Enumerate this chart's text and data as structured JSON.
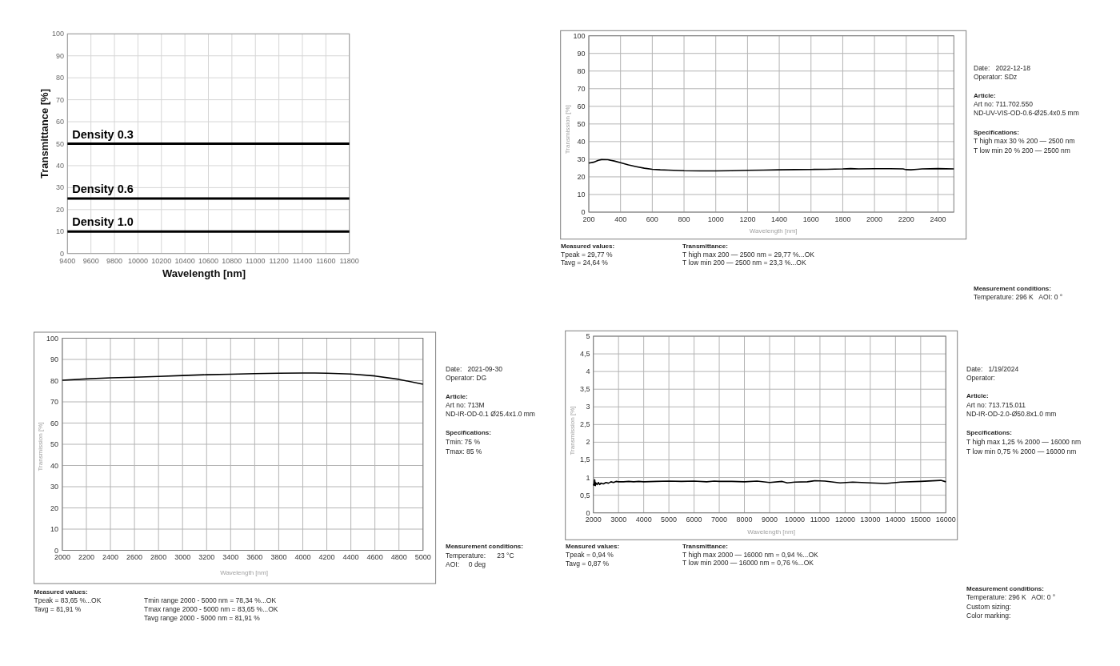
{
  "chart_data": [
    {
      "type": "line",
      "xlabel": "Wavelength [nm]",
      "ylabel": "Transmittance [%]",
      "xlim": [
        9400,
        11800
      ],
      "xticks": [
        9400,
        9600,
        9800,
        10000,
        10200,
        10400,
        10600,
        10800,
        11000,
        11200,
        11400,
        11600,
        11800
      ],
      "ylim": [
        0,
        100
      ],
      "yticks": [
        0,
        10,
        20,
        30,
        40,
        50,
        60,
        70,
        80,
        90,
        100
      ],
      "grid": true,
      "x": [
        9400,
        11800
      ],
      "series": [
        {
          "name": "Density 0.3",
          "color": "#000000",
          "values": [
            50,
            50
          ]
        },
        {
          "name": "Density 0.6",
          "color": "#000000",
          "values": [
            25,
            25
          ]
        },
        {
          "name": "Density 1.0",
          "color": "#000000",
          "values": [
            10,
            10
          ]
        }
      ]
    },
    {
      "type": "line",
      "xlabel": "Wavelength [nm]",
      "ylabel": "Transmission [%]",
      "xlim": [
        200,
        2500
      ],
      "xticks": [
        200,
        400,
        600,
        800,
        1000,
        1200,
        1400,
        1600,
        1800,
        2000,
        2200,
        2400
      ],
      "ylim": [
        0,
        100
      ],
      "yticks": [
        0,
        10,
        20,
        30,
        40,
        50,
        60,
        70,
        80,
        90,
        100
      ],
      "grid": true,
      "x": [
        200,
        230,
        260,
        280,
        320,
        360,
        400,
        450,
        500,
        550,
        600,
        650,
        700,
        800,
        900,
        1000,
        1100,
        1200,
        1300,
        1400,
        1500,
        1600,
        1700,
        1800,
        1850,
        1900,
        2000,
        2100,
        2180,
        2200,
        2230,
        2270,
        2300,
        2400,
        2500
      ],
      "series": [
        {
          "color": "#000000",
          "values": [
            27.8,
            28.3,
            29.4,
            29.8,
            29.7,
            29.0,
            28.0,
            26.8,
            25.8,
            24.9,
            24.3,
            24.0,
            23.8,
            23.5,
            23.4,
            23.4,
            23.5,
            23.7,
            23.8,
            24.0,
            24.1,
            24.2,
            24.3,
            24.5,
            24.7,
            24.5,
            24.6,
            24.6,
            24.5,
            24.1,
            24.0,
            24.3,
            24.5,
            24.7,
            24.5
          ]
        }
      ],
      "annotations": [
        "Measured values:",
        "Tpeak = 29,77 %",
        "Tavg = 24,64 %",
        "Transmittance:",
        "T high max 200 — 2500 nm = 29,77 %...OK",
        "T low min 200 — 2500 nm = 23,3 %...OK",
        "Date:   2022-12-18",
        "Operator: SDz",
        "Article:",
        "Art no: 711.702.550",
        "ND-UV-VIS-OD-0.6-Ø25.4x0.5 mm",
        "Specifications:",
        "T high max 30 % 200 — 2500 nm",
        "T low min 20 % 200 — 2500 nm",
        "Measurement conditions:",
        "Temperature: 296 K   AOI: 0 °"
      ]
    },
    {
      "type": "line",
      "xlabel": "Wavelength [nm]",
      "ylabel": "Transmission [%]",
      "xlim": [
        2000,
        5000
      ],
      "xticks": [
        2000,
        2200,
        2400,
        2600,
        2800,
        3000,
        3200,
        3400,
        3600,
        3800,
        4000,
        4200,
        4400,
        4600,
        4800,
        5000
      ],
      "ylim": [
        0,
        100
      ],
      "yticks": [
        0,
        10,
        20,
        30,
        40,
        50,
        60,
        70,
        80,
        90,
        100
      ],
      "grid": true,
      "x": [
        2000,
        2200,
        2400,
        2600,
        2800,
        3000,
        3200,
        3400,
        3600,
        3800,
        4000,
        4100,
        4200,
        4400,
        4600,
        4800,
        5000
      ],
      "series": [
        {
          "color": "#000000",
          "values": [
            80.2,
            80.8,
            81.3,
            81.6,
            82.0,
            82.4,
            82.8,
            83.0,
            83.3,
            83.5,
            83.6,
            83.6,
            83.5,
            83.1,
            82.2,
            80.6,
            78.3
          ]
        }
      ],
      "annotations": [
        "Measured values:",
        "Tpeak = 83,65 %...OK",
        "Tavg = 81,91 %",
        "Tmin range 2000 - 5000 nm = 78,34 %...OK",
        "Tmax range 2000 - 5000 nm = 83,65 %...OK",
        "Tavg range 2000 - 5000 nm = 81,91 %",
        "Date:   2021-09-30",
        "Operator: DG",
        "Article:",
        "Art no: 713M",
        "ND-IR-OD-0.1 Ø25.4x1.0 mm",
        "Specifications:",
        "Tmin: 75 %",
        "Tmax: 85 %",
        "Measurement conditions:",
        "Temperature:      23 °C",
        "AOI:     0 deg"
      ]
    },
    {
      "type": "line",
      "xlabel": "Wavelength [nm]",
      "ylabel": "Transmission [%]",
      "xlim": [
        2000,
        16000
      ],
      "xticks": [
        2000,
        3000,
        4000,
        5000,
        6000,
        7000,
        8000,
        9000,
        10000,
        11000,
        12000,
        13000,
        14000,
        15000,
        16000
      ],
      "ylim": [
        0,
        5
      ],
      "yticks": [
        0,
        {
          "value": 0.5,
          "label": "0,5"
        },
        1,
        {
          "value": 1.5,
          "label": "1,5"
        },
        2,
        {
          "value": 2.5,
          "label": "2,5"
        },
        3,
        {
          "value": 3.5,
          "label": "3,5"
        },
        4,
        {
          "value": 4.5,
          "label": "4,5"
        },
        5
      ],
      "grid": true,
      "x": [
        2000,
        2030,
        2050,
        2080,
        2100,
        2150,
        2200,
        2250,
        2300,
        2400,
        2500,
        2600,
        2700,
        2800,
        2900,
        3000,
        3200,
        3400,
        3600,
        3800,
        4000,
        4500,
        5000,
        5500,
        6000,
        6500,
        6800,
        7000,
        7500,
        8000,
        8500,
        9000,
        9500,
        9700,
        10000,
        10500,
        10800,
        11200,
        11800,
        12300,
        13000,
        13600,
        14200,
        15000,
        15800,
        16000
      ],
      "series": [
        {
          "color": "#000000",
          "values": [
            0.82,
            0.78,
            0.94,
            0.77,
            0.85,
            0.8,
            0.86,
            0.8,
            0.84,
            0.82,
            0.86,
            0.84,
            0.88,
            0.86,
            0.89,
            0.88,
            0.88,
            0.89,
            0.88,
            0.89,
            0.88,
            0.89,
            0.9,
            0.89,
            0.9,
            0.88,
            0.9,
            0.89,
            0.89,
            0.88,
            0.9,
            0.86,
            0.89,
            0.85,
            0.87,
            0.88,
            0.91,
            0.9,
            0.85,
            0.87,
            0.85,
            0.83,
            0.87,
            0.89,
            0.92,
            0.88
          ]
        }
      ],
      "annotations": [
        "Measured values:",
        "Tpeak = 0,94 %",
        "Tavg = 0,87 %",
        "Transmittance:",
        "T high max 2000 — 16000 nm = 0,94 %...OK",
        "T low min 2000 — 16000 nm = 0,76 %...OK",
        "Date:   1/19/2024",
        "Operator:",
        "Article:",
        "Art no: 713.715.011",
        "ND-IR-OD-2.0-Ø50.8x1.0 mm",
        "Specifications:",
        "T high max 1,25 % 2000 — 16000 nm",
        "T low min 0,75 % 2000 — 16000 nm",
        "Measurement conditions:",
        "Temperature: 296 K   AOI: 0 °",
        "Custom sizing:",
        "Color marking:"
      ]
    }
  ]
}
